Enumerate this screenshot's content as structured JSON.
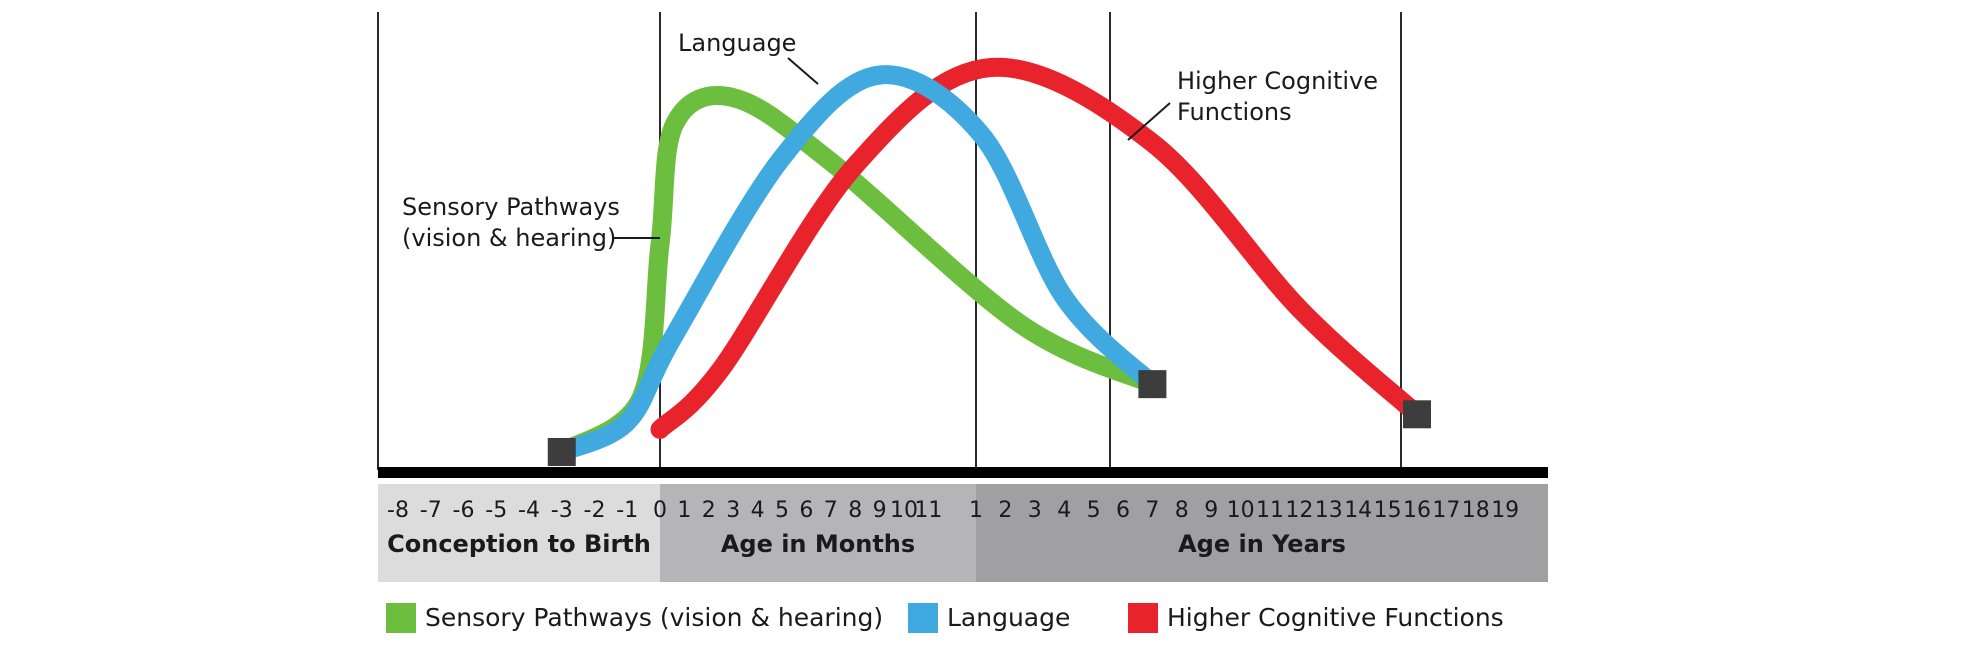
{
  "chart_data": {
    "type": "line",
    "x_axis": {
      "prenatal_ticks": [
        "-8",
        "-7",
        "-6",
        "-5",
        "-4",
        "-3",
        "-2",
        "-1"
      ],
      "month_ticks": [
        "0",
        "1",
        "2",
        "3",
        "4",
        "5",
        "6",
        "7",
        "8",
        "9",
        "10",
        "11"
      ],
      "year_ticks": [
        "1",
        "2",
        "3",
        "4",
        "5",
        "6",
        "7",
        "8",
        "9",
        "10",
        "11",
        "12",
        "13",
        "14",
        "15",
        "16",
        "17",
        "18",
        "19"
      ],
      "bands": [
        {
          "label": "Conception to Birth",
          "color": "#dcdcdc"
        },
        {
          "label": "Age in Months",
          "color": "#b5b5b7"
        },
        {
          "label": "Age in Years",
          "color": "#a0a0a2"
        }
      ],
      "scale": "piecewise: months -8..0 prenatal, months 0..12, then years 1..19"
    },
    "y_axis": {
      "label": "",
      "ticks_shown": false
    },
    "grid": "vertical lines at -8 months, birth (0), 1 year, 7 years, 16 years",
    "series": [
      {
        "name": "Sensory Pathways (vision & hearing)",
        "color": "#6cbf3e",
        "points": [
          {
            "seg": "pre",
            "x": -3,
            "y": 0.0
          },
          {
            "seg": "pre",
            "x": -0.6,
            "y": 0.14
          },
          {
            "seg": "mo",
            "x": 0,
            "y": 0.55
          },
          {
            "seg": "mo",
            "x": 0.6,
            "y": 0.87
          },
          {
            "seg": "mo",
            "x": 3,
            "y": 0.94
          },
          {
            "seg": "mo",
            "x": 7,
            "y": 0.77
          },
          {
            "seg": "yr",
            "x": 2.5,
            "y": 0.34
          },
          {
            "seg": "yr",
            "x": 7,
            "y": 0.18
          }
        ]
      },
      {
        "name": "Language",
        "color": "#3fa9e0",
        "points": [
          {
            "seg": "pre",
            "x": -3,
            "y": 0.0
          },
          {
            "seg": "pre",
            "x": -1,
            "y": 0.08
          },
          {
            "seg": "mo",
            "x": 0.5,
            "y": 0.3
          },
          {
            "seg": "mo",
            "x": 5,
            "y": 0.78
          },
          {
            "seg": "mo",
            "x": 9,
            "y": 1.0
          },
          {
            "seg": "yr",
            "x": 1.2,
            "y": 0.84
          },
          {
            "seg": "yr",
            "x": 4,
            "y": 0.41
          },
          {
            "seg": "yr",
            "x": 7,
            "y": 0.18
          }
        ]
      },
      {
        "name": "Higher Cognitive Functions",
        "color": "#e8232b",
        "points": [
          {
            "seg": "mo",
            "x": 0,
            "y": 0.06
          },
          {
            "seg": "mo",
            "x": 2.5,
            "y": 0.22
          },
          {
            "seg": "mo",
            "x": 8,
            "y": 0.76
          },
          {
            "seg": "yr",
            "x": 1.5,
            "y": 1.02
          },
          {
            "seg": "yr",
            "x": 7,
            "y": 0.82
          },
          {
            "seg": "yr",
            "x": 12,
            "y": 0.38
          },
          {
            "seg": "yr",
            "x": 16,
            "y": 0.1
          }
        ]
      }
    ],
    "endpoint_markers": [
      {
        "seg": "pre",
        "x": -3,
        "y": 0.0
      },
      {
        "seg": "yr",
        "x": 7,
        "y": 0.18
      },
      {
        "seg": "yr",
        "x": 16,
        "y": 0.1
      }
    ],
    "annotations": [
      {
        "text": "Language",
        "target": "Language"
      },
      {
        "text": "Sensory Pathways",
        "line2": "(vision & hearing)",
        "target": "Sensory Pathways (vision & hearing)"
      },
      {
        "text": "Higher Cognitive",
        "line2": "Functions",
        "target": "Higher Cognitive Functions"
      }
    ],
    "legend": {
      "placement": "bottom",
      "entries": [
        {
          "label": "Sensory Pathways (vision & hearing)",
          "color": "#6cbf3e"
        },
        {
          "label": "Language",
          "color": "#3fa9e0"
        },
        {
          "label": "Higher Cognitive Functions",
          "color": "#e8232b"
        }
      ]
    }
  }
}
